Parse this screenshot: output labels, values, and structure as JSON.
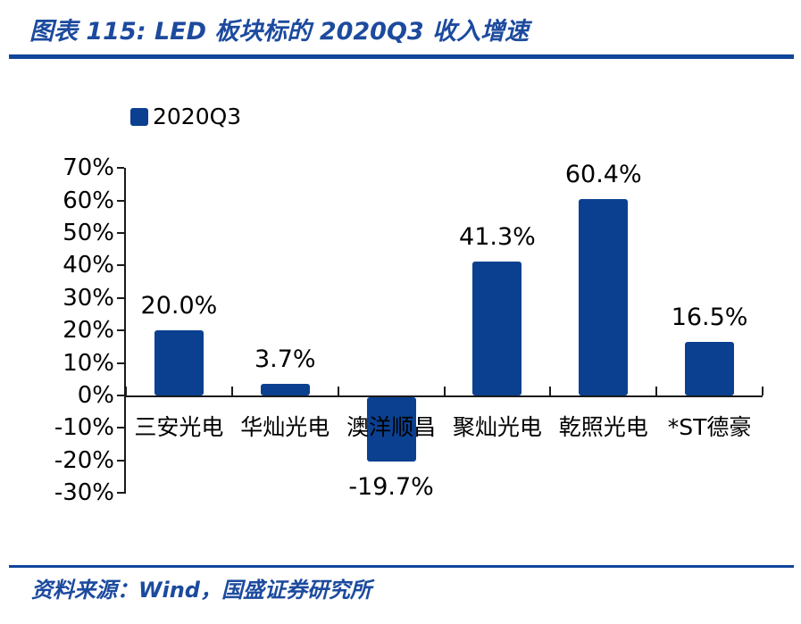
{
  "header": {
    "title": "图表 115: LED 板块标的 2020Q3 收入增速"
  },
  "colors": {
    "bar": "#0B4090",
    "rule": "#10459A",
    "title_text": "#1C4A9E"
  },
  "chart_data": {
    "type": "bar",
    "title": "LED 板块标的 2020Q3 收入增速",
    "legend": "2020Q3",
    "legend_position": "top-left",
    "grid": false,
    "categories": [
      "三安光电",
      "华灿光电",
      "澳洋顺昌",
      "聚灿光电",
      "乾照光电",
      "*ST德豪"
    ],
    "values": [
      20.0,
      3.7,
      -19.7,
      41.3,
      60.4,
      16.5
    ],
    "value_labels": [
      "20.0%",
      "3.7%",
      "-19.7%",
      "41.3%",
      "60.4%",
      "16.5%"
    ],
    "ytick_values": [
      70,
      60,
      50,
      40,
      30,
      20,
      10,
      0,
      -10,
      -20,
      -30
    ],
    "ytick_labels": [
      "70%",
      "60%",
      "50%",
      "40%",
      "30%",
      "20%",
      "10%",
      "0%",
      "-10%",
      "-20%",
      "-30%"
    ],
    "ylim": [
      -30,
      70
    ],
    "bar_color": "#0B4090",
    "xlabel": "",
    "ylabel": ""
  },
  "footer": {
    "source": "资料来源：Wind，国盛证券研究所"
  }
}
